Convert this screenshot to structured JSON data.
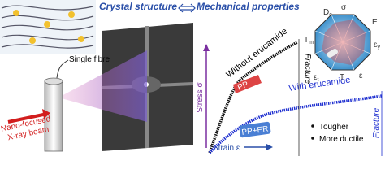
{
  "header": {
    "left_title": "Crystal structure",
    "right_title": "Mechanical properties"
  },
  "labels": {
    "single_fibre": "Single fibre",
    "xray_beam": [
      "Nano-focused",
      "X-ray beam"
    ]
  },
  "plot": {
    "y_axis": "Stress σ",
    "x_axis": "Strain ε",
    "curves": [
      {
        "label": "Without erucamide",
        "fracture": "Fracture",
        "sample": "PP"
      },
      {
        "label": "With erucamide",
        "fracture": "Fracture",
        "sample": "PP+ER"
      }
    ],
    "notes": [
      "Tougher",
      "More ductile"
    ]
  },
  "radar": {
    "labels": [
      {
        "main": "D",
        "sub": "c"
      },
      {
        "main": "σ",
        "sub": ""
      },
      {
        "main": "E",
        "sub": ""
      },
      {
        "main": "ε",
        "sub": "y"
      },
      {
        "main": "ε",
        "sub": ""
      },
      {
        "main": "T",
        "sub": ""
      },
      {
        "main": "ε",
        "sub": "t"
      },
      {
        "main": "T",
        "sub": "m"
      }
    ]
  }
}
